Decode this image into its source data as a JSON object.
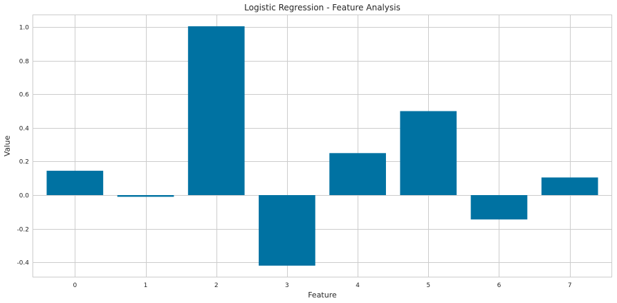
{
  "chart_data": {
    "type": "bar",
    "title": "Logistic Regression - Feature Analysis",
    "xlabel": "Feature",
    "ylabel": "Value",
    "categories": [
      "0",
      "1",
      "2",
      "3",
      "4",
      "5",
      "6",
      "7"
    ],
    "values": [
      0.145,
      -0.01,
      1.005,
      -0.42,
      0.25,
      0.5,
      -0.145,
      0.105
    ],
    "ylim": [
      -0.49,
      1.075
    ],
    "yticks": [
      -0.4,
      -0.2,
      0.0,
      0.2,
      0.4,
      0.6,
      0.8,
      1.0
    ],
    "ytick_labels": [
      "-0.4",
      "-0.2",
      "0.0",
      "0.2",
      "0.4",
      "0.6",
      "0.8",
      "1.0"
    ],
    "grid": true,
    "bar_color": "#0072a2",
    "grid_color": "#cccccc",
    "background_color": "#ffffff"
  }
}
